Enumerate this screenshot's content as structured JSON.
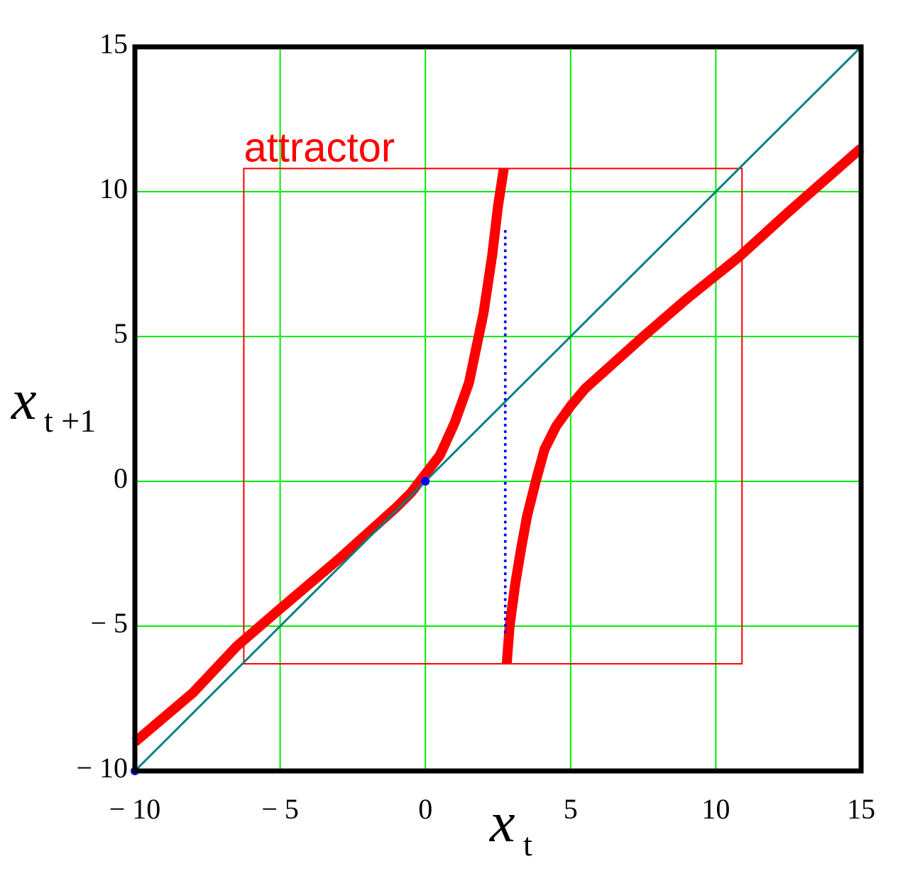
{
  "chart_data": {
    "type": "line",
    "xlabel": {
      "text": "x",
      "subscript": "t"
    },
    "ylabel": {
      "text": "x",
      "subscript": "t +1"
    },
    "xlim": [
      -10,
      15
    ],
    "ylim": [
      -10,
      15
    ],
    "xticks": [
      {
        "value": -10,
        "label": "− 10"
      },
      {
        "value": -5,
        "label": "− 5"
      },
      0,
      5,
      10,
      15
    ],
    "yticks": [
      {
        "value": -10,
        "label": "− 10"
      },
      {
        "value": -5,
        "label": "− 5"
      },
      0,
      5,
      10,
      15
    ],
    "grid": true,
    "grid_color": "#00ee00",
    "frame_color": "#000000",
    "series": [
      {
        "color": "#ff0000",
        "width": 14,
        "style": "solid",
        "x": [
          -10,
          -8,
          -6.5,
          -5,
          -3,
          -2,
          -1,
          -0.5,
          0,
          0.5,
          1,
          1.5,
          2,
          2.3,
          2.5,
          2.7
        ],
        "values": [
          -9,
          -7.3,
          -5.7,
          -4.4,
          -2.7,
          -1.8,
          -0.9,
          -0.4,
          0.25,
          0.9,
          2,
          3.4,
          5.8,
          7.8,
          9.5,
          10.8
        ]
      },
      {
        "color": "#ff0000",
        "width": 14,
        "style": "solid",
        "x": [
          2.8,
          2.9,
          3.1,
          3.3,
          3.5,
          3.8,
          4.1,
          4.5,
          5,
          5.5,
          6.5,
          7.5,
          9,
          10.8,
          12.5,
          15
        ],
        "values": [
          -6.3,
          -5,
          -3.5,
          -2.3,
          -1.2,
          0,
          1.1,
          1.9,
          2.6,
          3.2,
          4.1,
          5,
          6.3,
          7.75,
          9.3,
          11.5
        ]
      },
      {
        "color": "#008080",
        "width": 3,
        "style": "solid",
        "x": [
          -10,
          15
        ],
        "values": [
          -10,
          15
        ]
      },
      {
        "color": "#0000ff",
        "width": 4,
        "style": "dotted",
        "x": [
          2.75,
          2.75
        ],
        "values": [
          -5.2,
          8.8
        ]
      },
      {
        "color": "#0000ff",
        "marker": "dot",
        "x": [
          0,
          -10
        ],
        "values": [
          0,
          -10
        ]
      }
    ],
    "annotation": {
      "label": "attractor",
      "color": "#ff0000",
      "xlim": [
        -6.25,
        10.9
      ],
      "ylim": [
        -6.3,
        10.8
      ]
    }
  }
}
